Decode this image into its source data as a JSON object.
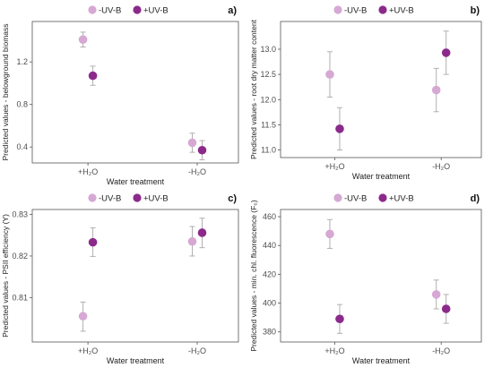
{
  "colors": {
    "minus_uvb": "#d6a8d3",
    "plus_uvb": "#8b2a8b",
    "error_bar": "#b0b0b0",
    "frame": "#555555"
  },
  "chart_data": [
    {
      "type": "scatter",
      "panel_label": "a)",
      "legend": [
        "-UV-B",
        "+UV-B"
      ],
      "legend_position": "top",
      "xlabel": "Water treatment",
      "ylabel": "Predicted values - belowground biomass",
      "categories": [
        "+H₂O",
        "-H₂O"
      ],
      "yticks": [
        "0.4",
        "0.8",
        "1.2"
      ],
      "ylim": [
        0.25,
        1.58
      ],
      "series": [
        {
          "name": "-UV-B",
          "values": [
            1.41,
            0.44
          ],
          "lower": [
            1.34,
            0.35
          ],
          "upper": [
            1.48,
            0.53
          ]
        },
        {
          "name": "+UV-B",
          "values": [
            1.07,
            0.37
          ],
          "lower": [
            0.98,
            0.28
          ],
          "upper": [
            1.16,
            0.46
          ]
        }
      ]
    },
    {
      "type": "scatter",
      "panel_label": "b)",
      "legend": [
        "-UV-B",
        "+UV-B"
      ],
      "legend_position": "top",
      "xlabel": "Water treatment",
      "ylabel": "Predicted values - root dry matter content",
      "categories": [
        "+H₂O",
        "-H₂O"
      ],
      "yticks": [
        "11.0",
        "11.5",
        "12.0",
        "12.5",
        "13.0"
      ],
      "ylim": [
        10.85,
        13.55
      ],
      "series": [
        {
          "name": "-UV-B",
          "values": [
            12.5,
            12.19
          ],
          "lower": [
            12.05,
            11.76
          ],
          "upper": [
            12.95,
            12.62
          ]
        },
        {
          "name": "+UV-B",
          "values": [
            11.42,
            12.93
          ],
          "lower": [
            11.0,
            12.5
          ],
          "upper": [
            11.84,
            13.36
          ]
        }
      ]
    },
    {
      "type": "scatter",
      "panel_label": "c)",
      "legend": [
        "-UV-B",
        "+UV-B"
      ],
      "legend_position": "top",
      "xlabel": "Water treatment",
      "ylabel": "Predicted values - PSII efficiency (Y)",
      "categories": [
        "+H₂O",
        "-H₂O"
      ],
      "yticks": [
        "0.81",
        "0.82",
        "0.83"
      ],
      "ylim": [
        0.7993,
        0.8312
      ],
      "series": [
        {
          "name": "-UV-B",
          "values": [
            0.8055,
            0.8235
          ],
          "lower": [
            0.8019,
            0.82
          ],
          "upper": [
            0.8089,
            0.8271
          ]
        },
        {
          "name": "+UV-B",
          "values": [
            0.8233,
            0.8256
          ],
          "lower": [
            0.8199,
            0.822
          ],
          "upper": [
            0.8268,
            0.8291
          ]
        }
      ]
    },
    {
      "type": "scatter",
      "panel_label": "d)",
      "legend": [
        "-UV-B",
        "+UV-B"
      ],
      "legend_position": "top",
      "xlabel": "Water treatment",
      "ylabel": "Predicted values - min. chl. fluorescence (F₀)",
      "categories": [
        "+H₂O",
        "-H₂O"
      ],
      "yticks": [
        "380",
        "400",
        "420",
        "440",
        "460"
      ],
      "ylim": [
        373,
        465
      ],
      "series": [
        {
          "name": "-UV-B",
          "values": [
            448,
            406
          ],
          "lower": [
            438,
            396
          ],
          "upper": [
            458,
            416
          ]
        },
        {
          "name": "+UV-B",
          "values": [
            389,
            396
          ],
          "lower": [
            379,
            386
          ],
          "upper": [
            399,
            406
          ]
        }
      ]
    }
  ]
}
